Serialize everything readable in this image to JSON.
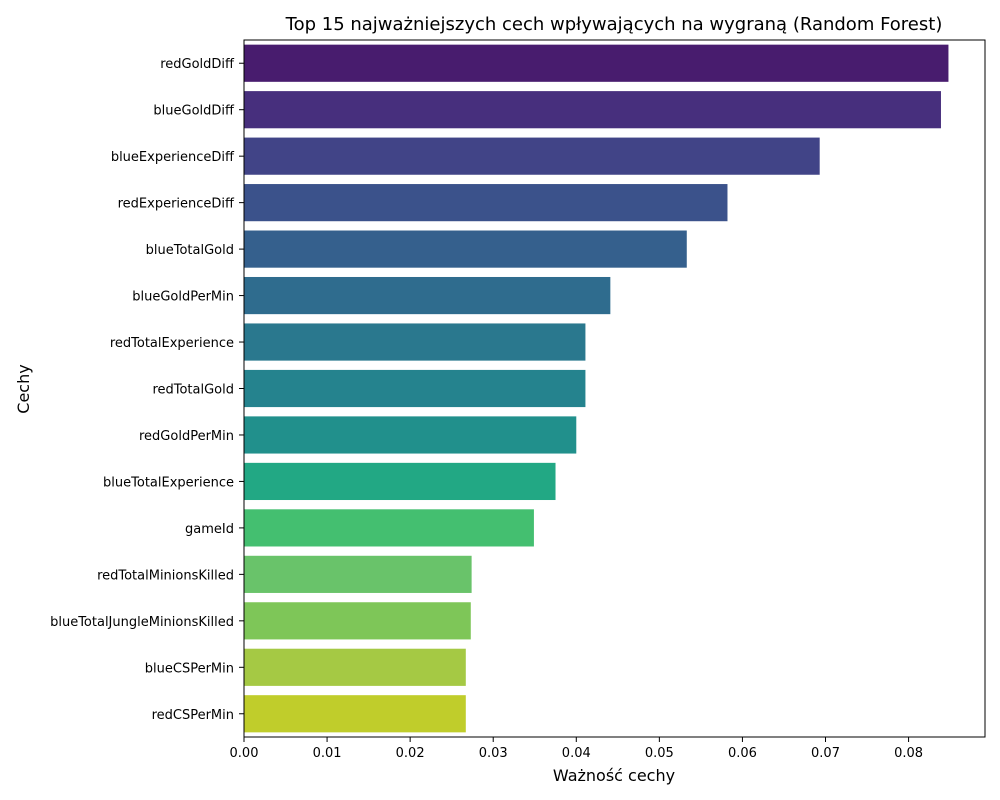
{
  "chart_data": {
    "type": "bar",
    "orientation": "horizontal",
    "title": "Top 15 najważniejszych cech wpływających na wygraną (Random Forest)",
    "xlabel": "Ważność cechy",
    "ylabel": "Cechy",
    "xlim": [
      0,
      0.0892
    ],
    "xticks": [
      "0.00",
      "0.01",
      "0.02",
      "0.03",
      "0.04",
      "0.05",
      "0.06",
      "0.07",
      "0.08"
    ],
    "grid": false,
    "legend": "none",
    "categories": [
      "redGoldDiff",
      "blueGoldDiff",
      "blueExperienceDiff",
      "redExperienceDiff",
      "blueTotalGold",
      "blueGoldPerMin",
      "redTotalExperience",
      "redTotalGold",
      "redGoldPerMin",
      "blueTotalExperience",
      "gameId",
      "redTotalMinionsKilled",
      "blueTotalJungleMinionsKilled",
      "blueCSPerMin",
      "redCSPerMin"
    ],
    "values": [
      0.0848,
      0.0839,
      0.0693,
      0.0582,
      0.0533,
      0.0441,
      0.0411,
      0.0411,
      0.04,
      0.0375,
      0.0349,
      0.0274,
      0.0273,
      0.0267,
      0.0267
    ],
    "colors": [
      "#481c6e",
      "#472f7d",
      "#414487",
      "#3b528b",
      "#35608d",
      "#2f6c8e",
      "#2a788e",
      "#25838e",
      "#21908c",
      "#22a884",
      "#44bf70",
      "#69c36a",
      "#7ec658",
      "#a5c944",
      "#c0cd2b"
    ]
  }
}
